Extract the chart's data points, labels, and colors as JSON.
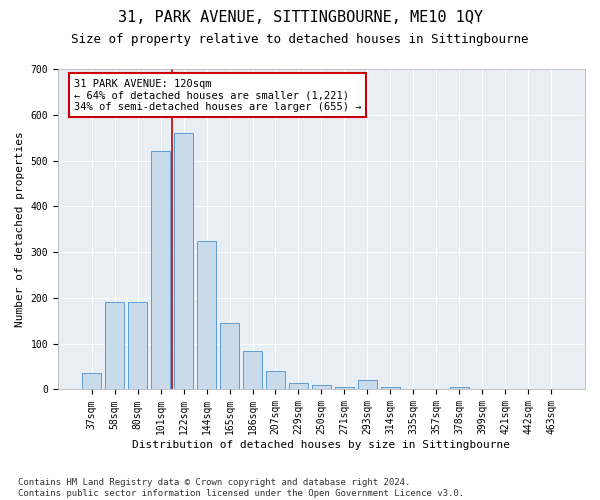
{
  "title": "31, PARK AVENUE, SITTINGBOURNE, ME10 1QY",
  "subtitle": "Size of property relative to detached houses in Sittingbourne",
  "xlabel": "Distribution of detached houses by size in Sittingbourne",
  "ylabel": "Number of detached properties",
  "footnote": "Contains HM Land Registry data © Crown copyright and database right 2024.\nContains public sector information licensed under the Open Government Licence v3.0.",
  "categories": [
    "37sqm",
    "58sqm",
    "80sqm",
    "101sqm",
    "122sqm",
    "144sqm",
    "165sqm",
    "186sqm",
    "207sqm",
    "229sqm",
    "250sqm",
    "271sqm",
    "293sqm",
    "314sqm",
    "335sqm",
    "357sqm",
    "378sqm",
    "399sqm",
    "421sqm",
    "442sqm",
    "463sqm"
  ],
  "values": [
    35,
    190,
    190,
    520,
    560,
    325,
    145,
    85,
    40,
    15,
    10,
    5,
    20,
    5,
    0,
    0,
    5,
    0,
    0,
    0,
    0
  ],
  "bar_color": "#c9daea",
  "bar_edge_color": "#5b9bd5",
  "vline_x_index": 4,
  "vline_color": "#cc0000",
  "annotation_box_text": "31 PARK AVENUE: 120sqm\n← 64% of detached houses are smaller (1,221)\n34% of semi-detached houses are larger (655) →",
  "ylim": [
    0,
    700
  ],
  "yticks": [
    0,
    100,
    200,
    300,
    400,
    500,
    600,
    700
  ],
  "bg_color": "#e8eef4",
  "title_fontsize": 11,
  "subtitle_fontsize": 9,
  "xlabel_fontsize": 8,
  "ylabel_fontsize": 8,
  "tick_fontsize": 7,
  "annotation_fontsize": 7.5,
  "footnote_fontsize": 6.5
}
